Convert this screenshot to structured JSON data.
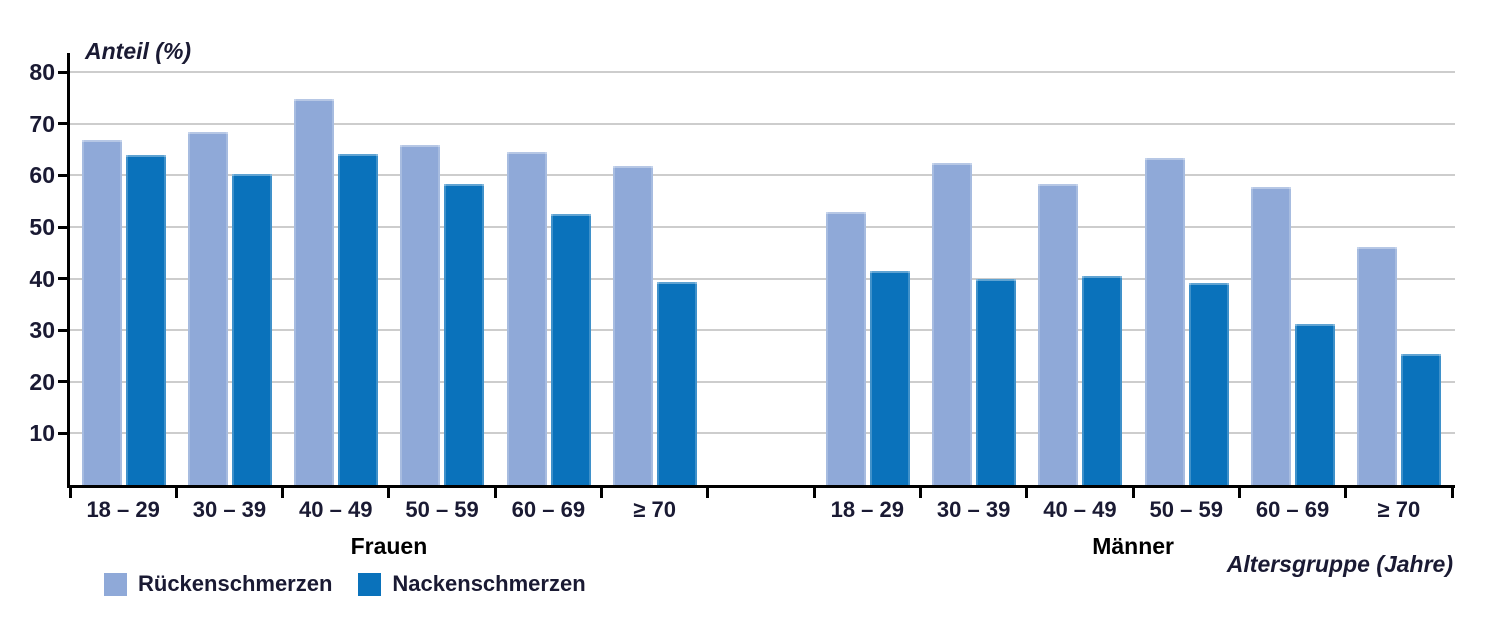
{
  "chart_data": {
    "type": "bar",
    "title": "",
    "ylabel": "Anteil (%)",
    "xlabel": "Altersgruppe (Jahre)",
    "ylim": [
      0,
      80
    ],
    "yticks": [
      10,
      20,
      30,
      40,
      50,
      60,
      70,
      80
    ],
    "grid": true,
    "legend_position": "bottom-left",
    "categories": [
      "18 – 29",
      "30 – 39",
      "40 – 49",
      "50 – 59",
      "60 – 69",
      "≥ 70"
    ],
    "sections": [
      {
        "label": "Frauen",
        "series": [
          {
            "name": "Rückenschmerzen",
            "color": "#8FA9D8",
            "values": [
              66.9,
              68.5,
              74.9,
              65.9,
              64.5,
              61.8
            ]
          },
          {
            "name": "Nackenschmerzen",
            "color": "#0A72BB",
            "values": [
              63.9,
              60.2,
              64.2,
              58.4,
              52.5,
              39.3
            ]
          }
        ]
      },
      {
        "label": "Männer",
        "series": [
          {
            "name": "Rückenschmerzen",
            "color": "#8FA9D8",
            "values": [
              52.9,
              62.4,
              58.4,
              63.4,
              57.8,
              46.1
            ]
          },
          {
            "name": "Nackenschmerzen",
            "color": "#0A72BB",
            "values": [
              41.4,
              40.0,
              40.5,
              39.2,
              31.2,
              25.3
            ]
          }
        ]
      }
    ],
    "legend": [
      {
        "label": "Rückenschmerzen",
        "color": "#8FA9D8"
      },
      {
        "label": "Nackenschmerzen",
        "color": "#0A72BB"
      }
    ]
  },
  "colors": {
    "bar_light": "#8FA9D8",
    "bar_dark": "#0A72BB",
    "gridline": "#CDCDCD",
    "axis": "#000000",
    "text": "#1A1A33"
  }
}
